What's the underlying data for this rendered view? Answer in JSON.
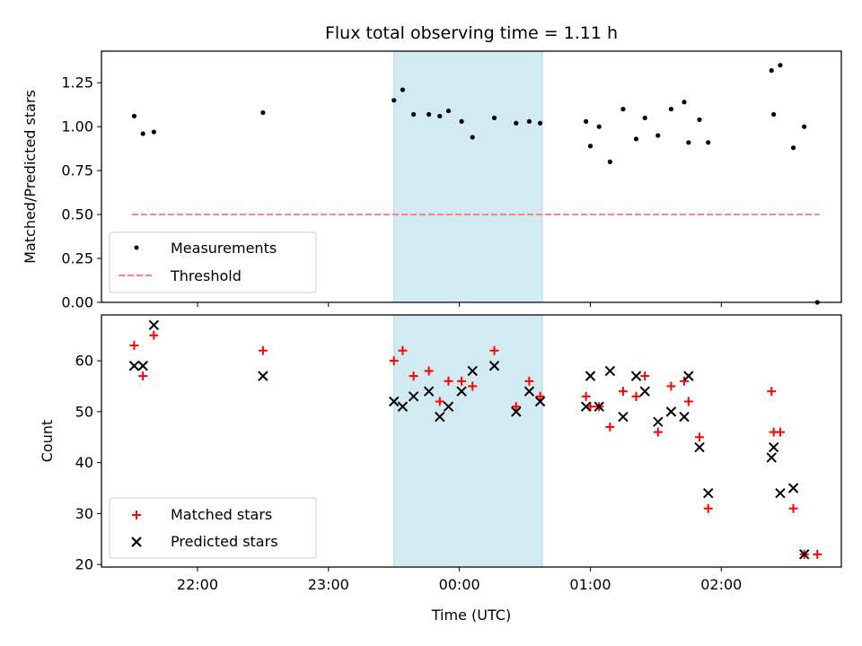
{
  "title": "Flux total observing time = 1.11 h",
  "xlabel": "Time (UTC)",
  "x_ticks": [
    "22:00",
    "23:00",
    "00:00",
    "01:00",
    "02:00"
  ],
  "colors": {
    "measurements": "#000000",
    "threshold": "#ff7f7f",
    "matched": "#ff0000",
    "predicted": "#000000",
    "highlight": "#add8e6"
  },
  "chart_data": [
    {
      "type": "scatter",
      "ylabel": "Matched/Predicted stars",
      "y_ticks": [
        "0.00",
        "0.25",
        "0.50",
        "0.75",
        "1.00",
        "1.25"
      ],
      "ylim": [
        0,
        1.43
      ],
      "xlim": [
        "21:16",
        "02:55"
      ],
      "highlight_span": [
        "23:30",
        "00:38"
      ],
      "legend": {
        "position": "lower left",
        "entries": [
          "Measurements",
          "Threshold"
        ]
      },
      "threshold": {
        "name": "Threshold",
        "y": 0.5,
        "x_start": "21:30",
        "x_end": "02:45"
      },
      "series": [
        {
          "name": "Measurements",
          "points": [
            [
              "21:31",
              1.06
            ],
            [
              "21:35",
              0.96
            ],
            [
              "21:40",
              0.97
            ],
            [
              "22:30",
              1.08
            ],
            [
              "23:30",
              1.15
            ],
            [
              "23:34",
              1.21
            ],
            [
              "23:39",
              1.07
            ],
            [
              "23:46",
              1.07
            ],
            [
              "23:51",
              1.06
            ],
            [
              "23:55",
              1.09
            ],
            [
              "00:01",
              1.03
            ],
            [
              "00:06",
              0.94
            ],
            [
              "00:16",
              1.05
            ],
            [
              "00:26",
              1.02
            ],
            [
              "00:32",
              1.03
            ],
            [
              "00:37",
              1.02
            ],
            [
              "00:58",
              1.03
            ],
            [
              "01:00",
              0.89
            ],
            [
              "01:04",
              1.0
            ],
            [
              "01:09",
              0.8
            ],
            [
              "01:15",
              1.1
            ],
            [
              "01:21",
              0.93
            ],
            [
              "01:25",
              1.05
            ],
            [
              "01:31",
              0.95
            ],
            [
              "01:37",
              1.1
            ],
            [
              "01:43",
              1.14
            ],
            [
              "01:45",
              0.91
            ],
            [
              "01:50",
              1.04
            ],
            [
              "01:54",
              0.91
            ],
            [
              "02:23",
              1.32
            ],
            [
              "02:24",
              1.07
            ],
            [
              "02:27",
              1.35
            ],
            [
              "02:33",
              0.88
            ],
            [
              "02:38",
              1.0
            ],
            [
              "02:44",
              0.0
            ]
          ]
        }
      ]
    },
    {
      "type": "scatter",
      "ylabel": "Count",
      "y_ticks": [
        "20",
        "30",
        "40",
        "50",
        "60"
      ],
      "ylim": [
        19.5,
        69
      ],
      "xlim": [
        "21:16",
        "02:55"
      ],
      "highlight_span": [
        "23:30",
        "00:38"
      ],
      "legend": {
        "position": "lower left",
        "entries": [
          "Matched stars",
          "Predicted stars"
        ]
      },
      "series": [
        {
          "name": "Matched stars",
          "points": [
            [
              "21:31",
              63
            ],
            [
              "21:35",
              57
            ],
            [
              "21:40",
              65
            ],
            [
              "22:30",
              62
            ],
            [
              "23:30",
              60
            ],
            [
              "23:34",
              62
            ],
            [
              "23:39",
              57
            ],
            [
              "23:46",
              58
            ],
            [
              "23:51",
              52
            ],
            [
              "23:55",
              56
            ],
            [
              "00:01",
              56
            ],
            [
              "00:06",
              55
            ],
            [
              "00:16",
              62
            ],
            [
              "00:26",
              51
            ],
            [
              "00:32",
              56
            ],
            [
              "00:37",
              53
            ],
            [
              "00:58",
              53
            ],
            [
              "01:00",
              51
            ],
            [
              "01:04",
              51
            ],
            [
              "01:09",
              47
            ],
            [
              "01:15",
              54
            ],
            [
              "01:21",
              53
            ],
            [
              "01:25",
              57
            ],
            [
              "01:31",
              46
            ],
            [
              "01:37",
              55
            ],
            [
              "01:43",
              56
            ],
            [
              "01:45",
              52
            ],
            [
              "01:50",
              45
            ],
            [
              "01:54",
              31
            ],
            [
              "02:23",
              54
            ],
            [
              "02:24",
              46
            ],
            [
              "02:27",
              46
            ],
            [
              "02:33",
              31
            ],
            [
              "02:38",
              22
            ],
            [
              "02:44",
              22
            ]
          ]
        },
        {
          "name": "Predicted stars",
          "points": [
            [
              "21:31",
              59
            ],
            [
              "21:35",
              59
            ],
            [
              "21:40",
              67
            ],
            [
              "22:30",
              57
            ],
            [
              "23:30",
              52
            ],
            [
              "23:34",
              51
            ],
            [
              "23:39",
              53
            ],
            [
              "23:46",
              54
            ],
            [
              "23:51",
              49
            ],
            [
              "23:55",
              51
            ],
            [
              "00:01",
              54
            ],
            [
              "00:06",
              58
            ],
            [
              "00:16",
              59
            ],
            [
              "00:26",
              50
            ],
            [
              "00:32",
              54
            ],
            [
              "00:37",
              52
            ],
            [
              "00:58",
              51
            ],
            [
              "01:00",
              57
            ],
            [
              "01:04",
              51
            ],
            [
              "01:09",
              58
            ],
            [
              "01:15",
              49
            ],
            [
              "01:21",
              57
            ],
            [
              "01:25",
              54
            ],
            [
              "01:31",
              48
            ],
            [
              "01:37",
              50
            ],
            [
              "01:43",
              49
            ],
            [
              "01:45",
              57
            ],
            [
              "01:50",
              43
            ],
            [
              "01:54",
              34
            ],
            [
              "02:23",
              41
            ],
            [
              "02:24",
              43
            ],
            [
              "02:27",
              34
            ],
            [
              "02:33",
              35
            ],
            [
              "02:38",
              22
            ]
          ]
        }
      ]
    }
  ]
}
